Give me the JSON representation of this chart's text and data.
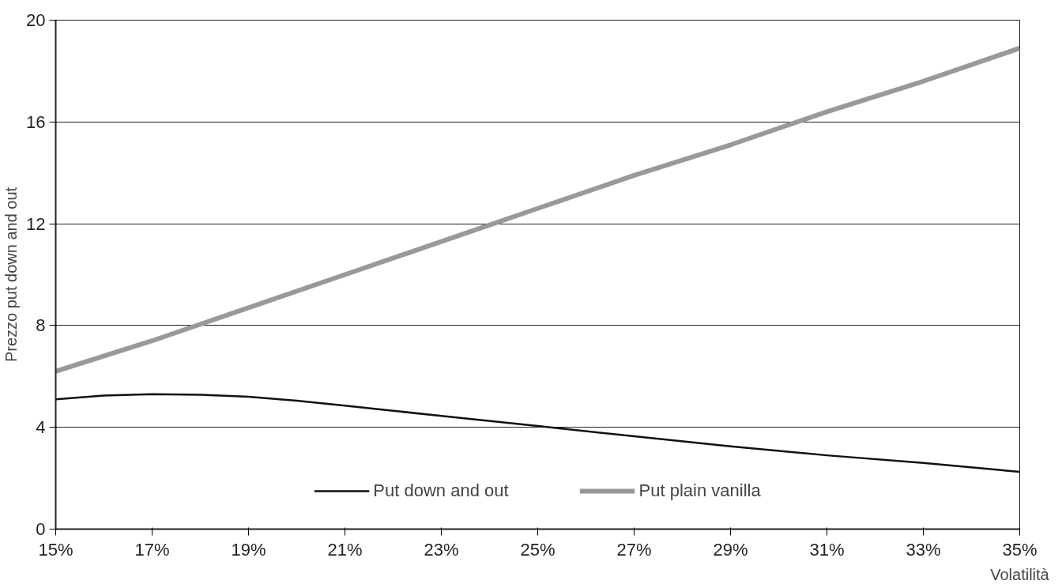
{
  "chart_data": {
    "type": "line",
    "xlabel": "Volatilità",
    "ylabel": "Prezzo put down and out",
    "xlim": [
      15,
      35
    ],
    "ylim": [
      0,
      20
    ],
    "xticks": [
      {
        "value": 15,
        "label": "15%"
      },
      {
        "value": 17,
        "label": "17%"
      },
      {
        "value": 19,
        "label": "19%"
      },
      {
        "value": 21,
        "label": "21%"
      },
      {
        "value": 23,
        "label": "23%"
      },
      {
        "value": 25,
        "label": "25%"
      },
      {
        "value": 27,
        "label": "27%"
      },
      {
        "value": 29,
        "label": "29%"
      },
      {
        "value": 31,
        "label": "31%"
      },
      {
        "value": 33,
        "label": "33%"
      },
      {
        "value": 35,
        "label": "35%"
      }
    ],
    "yticks": [
      0,
      4,
      8,
      12,
      16,
      20
    ],
    "grid": "y",
    "legend": "bottom",
    "marker": "none",
    "line_style": "solid",
    "series": [
      {
        "name": "Put down and out",
        "color": "#111111",
        "x": [
          15,
          16,
          17,
          18,
          19,
          20,
          21,
          22,
          23,
          25,
          27,
          29,
          31,
          33,
          35
        ],
        "values": [
          5.1,
          5.25,
          5.3,
          5.28,
          5.2,
          5.05,
          4.85,
          4.65,
          4.45,
          4.05,
          3.65,
          3.25,
          2.9,
          2.6,
          2.25
        ]
      },
      {
        "name": "Put plain vanilla",
        "color": "#999999",
        "x": [
          15,
          17,
          19,
          21,
          23,
          25,
          27,
          29,
          31,
          33,
          35
        ],
        "values": [
          6.2,
          7.4,
          8.7,
          10.0,
          11.3,
          12.6,
          13.9,
          15.1,
          16.4,
          17.6,
          18.9
        ]
      }
    ]
  }
}
